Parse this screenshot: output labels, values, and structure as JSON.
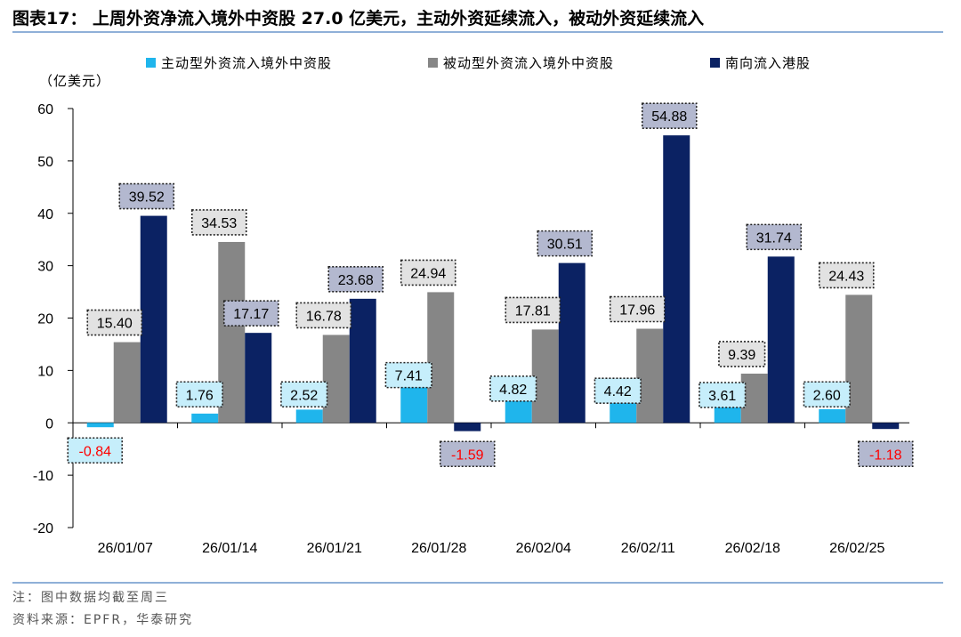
{
  "header": {
    "title": "图表17：  上周外资净流入境外中资股 27.0 亿美元，主动外资延续流入，被动外资延续流入"
  },
  "footer": {
    "note": "注：图中数据均截至周三",
    "source": "资料来源：EPFR，华泰研究"
  },
  "chart_data": {
    "type": "bar",
    "title": "",
    "ylabel": "（亿美元）",
    "xlabel": "",
    "ylim": [
      -20,
      60
    ],
    "yticks": [
      60,
      50,
      40,
      30,
      20,
      10,
      0,
      -10,
      -20
    ],
    "grid": false,
    "legend_position": "top",
    "categories": [
      "26/01/07",
      "26/01/14",
      "26/01/21",
      "26/01/28",
      "26/02/04",
      "26/02/11",
      "26/02/18",
      "26/02/25"
    ],
    "series": [
      {
        "name": "主动型外资流入境外中资股",
        "color": "#1fb5ec",
        "label_bg": "#c6eefb",
        "values": [
          -0.84,
          1.76,
          2.52,
          7.41,
          4.82,
          4.42,
          3.61,
          2.6
        ],
        "labels": [
          "-0.84",
          "1.76",
          "2.52",
          "7.41",
          "4.82",
          "4.42",
          "3.61",
          "2.60"
        ]
      },
      {
        "name": "被动型外资流入境外中资股",
        "color": "#868686",
        "label_bg": "#e2e2e2",
        "values": [
          15.4,
          34.53,
          16.78,
          24.94,
          17.81,
          17.96,
          9.39,
          24.43
        ],
        "labels": [
          "15.40",
          "34.53",
          "16.78",
          "24.94",
          "17.81",
          "17.96",
          "9.39",
          "24.43"
        ]
      },
      {
        "name": "南向流入港股",
        "color": "#0b2263",
        "label_bg": "#b3b8cf",
        "values": [
          39.52,
          17.17,
          23.68,
          -1.59,
          30.51,
          54.88,
          31.74,
          -1.18
        ],
        "labels": [
          "39.52",
          "17.17",
          "23.68",
          "-1.59",
          "30.51",
          "54.88",
          "31.74",
          "-1.18"
        ]
      }
    ],
    "negative_label_color": "#ff0000"
  }
}
